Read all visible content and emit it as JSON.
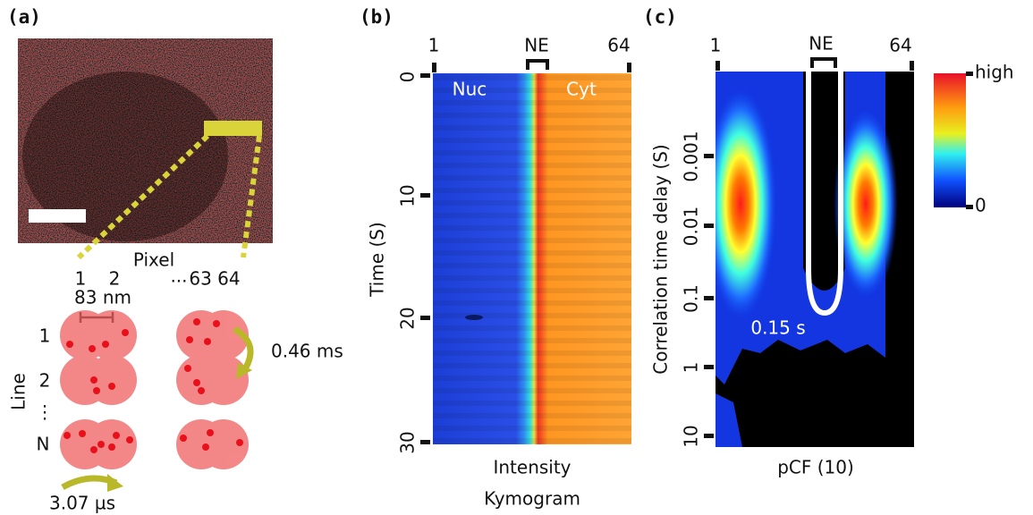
{
  "a": {
    "label": "(a)",
    "pixel_title": "Pixel",
    "pixels": [
      "1",
      "2",
      "···",
      "63 64"
    ],
    "pixel_size": "83 nm",
    "line_title": "Line",
    "lines": [
      "1",
      "2",
      "⋮",
      "N"
    ],
    "line_time": "0.46 ms",
    "pixel_time": "3.07 µs"
  },
  "b": {
    "label": "(b)",
    "top_ticks": [
      "1",
      "NE",
      "64"
    ],
    "y_ticks": [
      "0",
      "10",
      "20",
      "30"
    ],
    "y_label": "Time (S)",
    "regions": [
      "Nuc",
      "Cyt"
    ],
    "x_label": "Intensity",
    "caption": "Kymogram"
  },
  "c": {
    "label": "(c)",
    "top_ticks": [
      "1",
      "NE",
      "64"
    ],
    "y_ticks": [
      "0.001",
      "0.01",
      "0.1",
      "1",
      "10"
    ],
    "y_label": "Correlation time delay (S)",
    "annotation": "0.15 s",
    "x_label": "pCF (10)",
    "colorbar": [
      "high",
      "0"
    ]
  }
}
